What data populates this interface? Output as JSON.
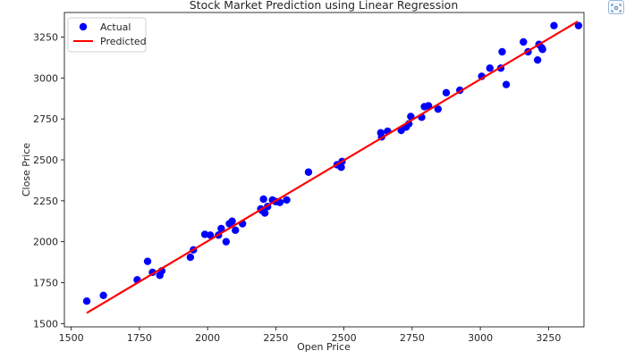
{
  "chart_data": {
    "type": "scatter",
    "title": "Stock Market Prediction using Linear Regression",
    "xlabel": "Open Price",
    "ylabel": "Close Price",
    "xlim": [
      1475,
      3380
    ],
    "ylim": [
      1480,
      3400
    ],
    "xticks": [
      1500,
      1750,
      2000,
      2250,
      2500,
      2750,
      3000,
      3250
    ],
    "yticks": [
      1500,
      1750,
      2000,
      2250,
      2500,
      2750,
      3000,
      3250
    ],
    "legend_position": "upper-left",
    "grid": false,
    "series": [
      {
        "name": "Actual",
        "kind": "scatter",
        "color": "#0000ff",
        "points": [
          [
            1557,
            1637
          ],
          [
            1618,
            1672
          ],
          [
            1742,
            1767
          ],
          [
            1780,
            1880
          ],
          [
            1798,
            1813
          ],
          [
            1825,
            1795
          ],
          [
            1832,
            1822
          ],
          [
            1937,
            1905
          ],
          [
            1948,
            1950
          ],
          [
            1990,
            2045
          ],
          [
            2010,
            2040
          ],
          [
            2040,
            2040
          ],
          [
            2050,
            2080
          ],
          [
            2068,
            2000
          ],
          [
            2080,
            2110
          ],
          [
            2090,
            2125
          ],
          [
            2102,
            2070
          ],
          [
            2128,
            2110
          ],
          [
            2195,
            2200
          ],
          [
            2200,
            2190
          ],
          [
            2205,
            2260
          ],
          [
            2210,
            2175
          ],
          [
            2220,
            2215
          ],
          [
            2238,
            2255
          ],
          [
            2250,
            2245
          ],
          [
            2265,
            2240
          ],
          [
            2290,
            2255
          ],
          [
            2370,
            2425
          ],
          [
            2475,
            2470
          ],
          [
            2490,
            2455
          ],
          [
            2493,
            2490
          ],
          [
            2635,
            2665
          ],
          [
            2638,
            2640
          ],
          [
            2660,
            2675
          ],
          [
            2710,
            2680
          ],
          [
            2728,
            2700
          ],
          [
            2738,
            2720
          ],
          [
            2745,
            2765
          ],
          [
            2785,
            2760
          ],
          [
            2795,
            2825
          ],
          [
            2810,
            2830
          ],
          [
            2845,
            2810
          ],
          [
            2875,
            2910
          ],
          [
            2925,
            2925
          ],
          [
            3005,
            3010
          ],
          [
            3035,
            3060
          ],
          [
            3075,
            3060
          ],
          [
            3080,
            3160
          ],
          [
            3095,
            2960
          ],
          [
            3158,
            3220
          ],
          [
            3175,
            3160
          ],
          [
            3210,
            3110
          ],
          [
            3215,
            3205
          ],
          [
            3225,
            3185
          ],
          [
            3228,
            3175
          ],
          [
            3270,
            3320
          ],
          [
            3360,
            3320
          ]
        ]
      },
      {
        "name": "Predicted",
        "kind": "line",
        "color": "#ff0000",
        "points": [
          [
            1557,
            1565
          ],
          [
            3357,
            3345
          ]
        ]
      }
    ]
  },
  "ui": {
    "corner_icon": "enlarge-icon"
  }
}
